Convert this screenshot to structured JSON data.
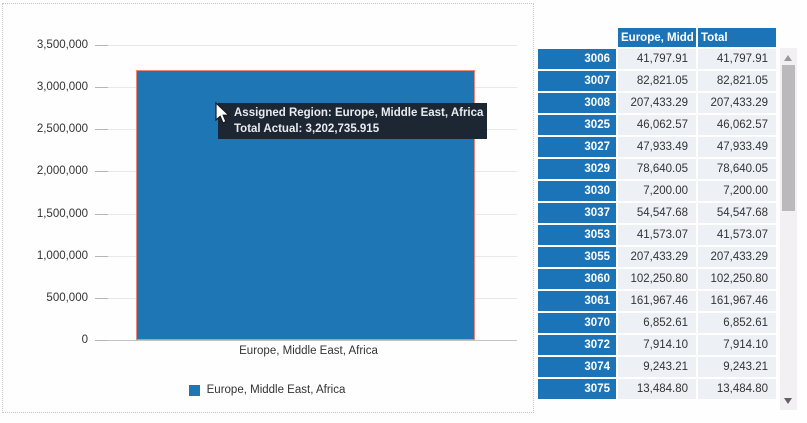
{
  "colors": {
    "bar_fill": "#1f76b4",
    "bar_border": "#ef8671",
    "table_header_blue": "#1c74b8",
    "tooltip_bg": "#1d2733",
    "tooltip_text": "#e9ecef",
    "gridline": "#e7e9e7",
    "cell_bg": "#edf1f6"
  },
  "chart_data": {
    "type": "bar",
    "title": "",
    "xlabel": "",
    "ylabel": "",
    "categories": [
      "Europe, Middle East, Africa"
    ],
    "series": [
      {
        "name": "Europe, Middle East, Africa",
        "values": [
          3202735.915
        ]
      }
    ],
    "ylim": [
      0,
      3500000
    ],
    "grid": true,
    "legend_position": "bottom",
    "y_ticks": [
      {
        "value": 0,
        "label": "0"
      },
      {
        "value": 500000,
        "label": "500,000"
      },
      {
        "value": 1000000,
        "label": "1,000,000"
      },
      {
        "value": 1500000,
        "label": "1,500,000"
      },
      {
        "value": 2000000,
        "label": "2,000,000"
      },
      {
        "value": 2500000,
        "label": "2,500,000"
      },
      {
        "value": 3000000,
        "label": "3,000,000"
      },
      {
        "value": 3500000,
        "label": "3,500,000"
      }
    ]
  },
  "chart": {
    "x_category_label": "Europe, Middle East, Africa",
    "legend_label": "Europe, Middle East, Africa"
  },
  "tooltip": {
    "line1": "Assigned Region: Europe, Middle East, Africa",
    "line2": "Total Actual: 3,202,735.915"
  },
  "table": {
    "columns": [
      "Europe, Midd",
      "Total"
    ],
    "rows": [
      {
        "id": "3006",
        "value": "41,797.91",
        "total": "41,797.91"
      },
      {
        "id": "3007",
        "value": "82,821.05",
        "total": "82,821.05"
      },
      {
        "id": "3008",
        "value": "207,433.29",
        "total": "207,433.29"
      },
      {
        "id": "3025",
        "value": "46,062.57",
        "total": "46,062.57"
      },
      {
        "id": "3027",
        "value": "47,933.49",
        "total": "47,933.49"
      },
      {
        "id": "3029",
        "value": "78,640.05",
        "total": "78,640.05"
      },
      {
        "id": "3030",
        "value": "7,200.00",
        "total": "7,200.00"
      },
      {
        "id": "3037",
        "value": "54,547.68",
        "total": "54,547.68"
      },
      {
        "id": "3053",
        "value": "41,573.07",
        "total": "41,573.07"
      },
      {
        "id": "3055",
        "value": "207,433.29",
        "total": "207,433.29"
      },
      {
        "id": "3060",
        "value": "102,250.80",
        "total": "102,250.80"
      },
      {
        "id": "3061",
        "value": "161,967.46",
        "total": "161,967.46"
      },
      {
        "id": "3070",
        "value": "6,852.61",
        "total": "6,852.61"
      },
      {
        "id": "3072",
        "value": "7,914.10",
        "total": "7,914.10"
      },
      {
        "id": "3074",
        "value": "9,243.21",
        "total": "9,243.21"
      },
      {
        "id": "3075",
        "value": "13,484.80",
        "total": "13,484.80"
      }
    ]
  }
}
